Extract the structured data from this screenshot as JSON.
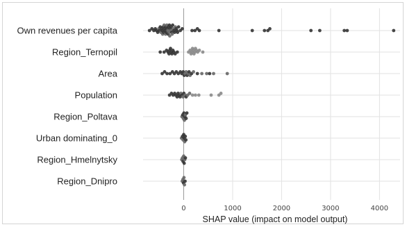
{
  "chart_data": {
    "type": "scatter",
    "title": "",
    "xlabel": "SHAP value (impact on model output)",
    "ylabel": "",
    "xlim": [
      -830,
      4420
    ],
    "xticks": [
      0,
      1000,
      2000,
      3000,
      4000
    ],
    "xtick_labels": [
      "0",
      "1000",
      "2000",
      "3000",
      "4000"
    ],
    "grid": true,
    "legend": "none",
    "colors": {
      "dot_dark": "#333333",
      "dot_mid": "#666666",
      "dot_light": "#8a8a8a",
      "zero_line": "#999999",
      "grid": "#e2e2e2"
    },
    "features": [
      {
        "name": "Own revenues per capita",
        "points": [
          {
            "x": -700,
            "tone": "dark"
          },
          {
            "x": -650,
            "tone": "dark"
          },
          {
            "x": -610,
            "tone": "dark"
          },
          {
            "x": -580,
            "tone": "dark"
          },
          {
            "x": -555,
            "tone": "dark"
          },
          {
            "x": -530,
            "tone": "dark"
          },
          {
            "x": -510,
            "tone": "mid"
          },
          {
            "x": -495,
            "tone": "dark"
          },
          {
            "x": -480,
            "tone": "dark"
          },
          {
            "x": -465,
            "tone": "mid"
          },
          {
            "x": -450,
            "tone": "dark"
          },
          {
            "x": -440,
            "tone": "dark"
          },
          {
            "x": -430,
            "tone": "mid"
          },
          {
            "x": -420,
            "tone": "dark"
          },
          {
            "x": -410,
            "tone": "dark"
          },
          {
            "x": -400,
            "tone": "mid"
          },
          {
            "x": -390,
            "tone": "dark"
          },
          {
            "x": -380,
            "tone": "dark"
          },
          {
            "x": -372,
            "tone": "mid"
          },
          {
            "x": -365,
            "tone": "dark"
          },
          {
            "x": -355,
            "tone": "dark"
          },
          {
            "x": -345,
            "tone": "mid"
          },
          {
            "x": -335,
            "tone": "dark"
          },
          {
            "x": -325,
            "tone": "mid"
          },
          {
            "x": -318,
            "tone": "dark"
          },
          {
            "x": -310,
            "tone": "dark"
          },
          {
            "x": -300,
            "tone": "mid"
          },
          {
            "x": -292,
            "tone": "dark"
          },
          {
            "x": -285,
            "tone": "mid"
          },
          {
            "x": -275,
            "tone": "dark"
          },
          {
            "x": -265,
            "tone": "mid"
          },
          {
            "x": -255,
            "tone": "dark"
          },
          {
            "x": -245,
            "tone": "dark"
          },
          {
            "x": -235,
            "tone": "mid"
          },
          {
            "x": -225,
            "tone": "dark"
          },
          {
            "x": -215,
            "tone": "mid"
          },
          {
            "x": -200,
            "tone": "dark"
          },
          {
            "x": -185,
            "tone": "dark"
          },
          {
            "x": -170,
            "tone": "mid"
          },
          {
            "x": -155,
            "tone": "dark"
          },
          {
            "x": -140,
            "tone": "dark"
          },
          {
            "x": -125,
            "tone": "dark"
          },
          {
            "x": -105,
            "tone": "dark"
          },
          {
            "x": -70,
            "tone": "dark"
          },
          {
            "x": -30,
            "tone": "dark"
          },
          {
            "x": 170,
            "tone": "dark"
          },
          {
            "x": 230,
            "tone": "dark"
          },
          {
            "x": 280,
            "tone": "dark"
          },
          {
            "x": 320,
            "tone": "dark"
          },
          {
            "x": 720,
            "tone": "dark"
          },
          {
            "x": 1400,
            "tone": "dark"
          },
          {
            "x": 1650,
            "tone": "dark"
          },
          {
            "x": 1720,
            "tone": "dark"
          },
          {
            "x": 1760,
            "tone": "dark"
          },
          {
            "x": 2600,
            "tone": "dark"
          },
          {
            "x": 2780,
            "tone": "dark"
          },
          {
            "x": 3280,
            "tone": "dark"
          },
          {
            "x": 3340,
            "tone": "dark"
          },
          {
            "x": 4290,
            "tone": "dark"
          }
        ]
      },
      {
        "name": "Region_Ternopil",
        "points": [
          {
            "x": -480,
            "tone": "dark"
          },
          {
            "x": -400,
            "tone": "dark"
          },
          {
            "x": -350,
            "tone": "dark"
          },
          {
            "x": -320,
            "tone": "dark"
          },
          {
            "x": -300,
            "tone": "dark"
          },
          {
            "x": -285,
            "tone": "dark"
          },
          {
            "x": -270,
            "tone": "dark"
          },
          {
            "x": -255,
            "tone": "dark"
          },
          {
            "x": -240,
            "tone": "dark"
          },
          {
            "x": -220,
            "tone": "dark"
          },
          {
            "x": -200,
            "tone": "dark"
          },
          {
            "x": -175,
            "tone": "dark"
          },
          {
            "x": -130,
            "tone": "dark"
          },
          {
            "x": 100,
            "tone": "light"
          },
          {
            "x": 130,
            "tone": "light"
          },
          {
            "x": 150,
            "tone": "light"
          },
          {
            "x": 165,
            "tone": "light"
          },
          {
            "x": 180,
            "tone": "light"
          },
          {
            "x": 195,
            "tone": "light"
          },
          {
            "x": 210,
            "tone": "light"
          },
          {
            "x": 225,
            "tone": "light"
          },
          {
            "x": 240,
            "tone": "light"
          },
          {
            "x": 260,
            "tone": "light"
          },
          {
            "x": 285,
            "tone": "light"
          },
          {
            "x": 320,
            "tone": "light"
          },
          {
            "x": 390,
            "tone": "light"
          }
        ]
      },
      {
        "name": "Area",
        "points": [
          {
            "x": -440,
            "tone": "dark"
          },
          {
            "x": -390,
            "tone": "dark"
          },
          {
            "x": -340,
            "tone": "dark"
          },
          {
            "x": -280,
            "tone": "dark"
          },
          {
            "x": -230,
            "tone": "dark"
          },
          {
            "x": -190,
            "tone": "dark"
          },
          {
            "x": -150,
            "tone": "dark"
          },
          {
            "x": -110,
            "tone": "dark"
          },
          {
            "x": -70,
            "tone": "dark"
          },
          {
            "x": -40,
            "tone": "dark"
          },
          {
            "x": -10,
            "tone": "dark"
          },
          {
            "x": 10,
            "tone": "dark"
          },
          {
            "x": 30,
            "tone": "mid"
          },
          {
            "x": 50,
            "tone": "mid"
          },
          {
            "x": 70,
            "tone": "dark"
          },
          {
            "x": 90,
            "tone": "mid"
          },
          {
            "x": 110,
            "tone": "dark"
          },
          {
            "x": 130,
            "tone": "mid"
          },
          {
            "x": 160,
            "tone": "dark"
          },
          {
            "x": 200,
            "tone": "mid"
          },
          {
            "x": 280,
            "tone": "dark"
          },
          {
            "x": 370,
            "tone": "mid"
          },
          {
            "x": 470,
            "tone": "mid"
          },
          {
            "x": 530,
            "tone": "dark"
          },
          {
            "x": 610,
            "tone": "mid"
          },
          {
            "x": 890,
            "tone": "mid"
          }
        ]
      },
      {
        "name": "Population",
        "points": [
          {
            "x": -290,
            "tone": "dark"
          },
          {
            "x": -250,
            "tone": "dark"
          },
          {
            "x": -215,
            "tone": "dark"
          },
          {
            "x": -185,
            "tone": "dark"
          },
          {
            "x": -160,
            "tone": "dark"
          },
          {
            "x": -135,
            "tone": "dark"
          },
          {
            "x": -115,
            "tone": "dark"
          },
          {
            "x": -95,
            "tone": "dark"
          },
          {
            "x": -75,
            "tone": "dark"
          },
          {
            "x": -55,
            "tone": "mid"
          },
          {
            "x": -35,
            "tone": "dark"
          },
          {
            "x": -15,
            "tone": "mid"
          },
          {
            "x": 5,
            "tone": "dark"
          },
          {
            "x": 25,
            "tone": "mid"
          },
          {
            "x": 50,
            "tone": "dark"
          },
          {
            "x": 80,
            "tone": "mid"
          },
          {
            "x": 120,
            "tone": "mid"
          },
          {
            "x": 180,
            "tone": "light"
          },
          {
            "x": 240,
            "tone": "light"
          },
          {
            "x": 310,
            "tone": "light"
          },
          {
            "x": 560,
            "tone": "light"
          },
          {
            "x": 720,
            "tone": "light"
          },
          {
            "x": 760,
            "tone": "light"
          }
        ]
      },
      {
        "name": "Region_Poltava",
        "points": [
          {
            "x": -35,
            "tone": "mid"
          },
          {
            "x": -20,
            "tone": "dark"
          },
          {
            "x": -8,
            "tone": "mid"
          },
          {
            "x": 4,
            "tone": "dark"
          },
          {
            "x": 14,
            "tone": "mid"
          },
          {
            "x": 24,
            "tone": "dark"
          },
          {
            "x": 34,
            "tone": "mid"
          },
          {
            "x": 50,
            "tone": "dark"
          },
          {
            "x": 65,
            "tone": "dark"
          }
        ]
      },
      {
        "name": "Urban dominating_0",
        "points": [
          {
            "x": -45,
            "tone": "mid"
          },
          {
            "x": -25,
            "tone": "dark"
          },
          {
            "x": -12,
            "tone": "mid"
          },
          {
            "x": 0,
            "tone": "dark"
          },
          {
            "x": 10,
            "tone": "dark"
          },
          {
            "x": 20,
            "tone": "mid"
          },
          {
            "x": 32,
            "tone": "dark"
          },
          {
            "x": 45,
            "tone": "dark"
          }
        ]
      },
      {
        "name": "Region_Hmelnytsky",
        "points": [
          {
            "x": -40,
            "tone": "mid"
          },
          {
            "x": -25,
            "tone": "mid"
          },
          {
            "x": -12,
            "tone": "dark"
          },
          {
            "x": 0,
            "tone": "mid"
          },
          {
            "x": 10,
            "tone": "dark"
          },
          {
            "x": 22,
            "tone": "mid"
          },
          {
            "x": 35,
            "tone": "dark"
          }
        ]
      },
      {
        "name": "Region_Dnipro",
        "points": [
          {
            "x": -30,
            "tone": "mid"
          },
          {
            "x": -15,
            "tone": "mid"
          },
          {
            "x": -4,
            "tone": "dark"
          },
          {
            "x": 6,
            "tone": "mid"
          },
          {
            "x": 16,
            "tone": "mid"
          },
          {
            "x": 28,
            "tone": "dark"
          }
        ]
      }
    ]
  }
}
